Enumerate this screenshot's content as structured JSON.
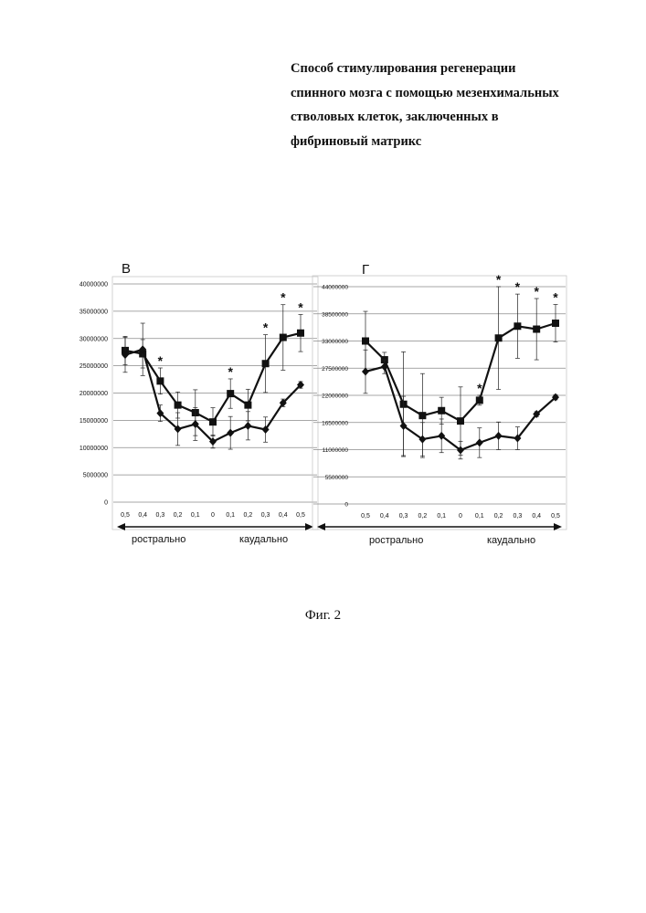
{
  "page": {
    "title_lines": [
      "Способ стимулирования регенерации",
      "спинного мозга с помощью мезенхимальных",
      "стволовых клеток, заключенных в",
      "фибриновый матрикс"
    ],
    "caption": "Фиг. 2"
  },
  "chart_data": [
    {
      "type": "line",
      "panel_label": "В",
      "categories": [
        "0,5",
        "0,4",
        "0,3",
        "0,2",
        "0,1",
        "0",
        "0,1",
        "0,2",
        "0,3",
        "0,4",
        "0,5"
      ],
      "yticks": [
        0,
        5000000,
        10000000,
        15000000,
        20000000,
        25000000,
        30000000,
        35000000,
        40000000
      ],
      "ytick_labels": [
        "0",
        "5000000",
        "10000000",
        "15000000",
        "20000000",
        "25000000",
        "30000000",
        "35000000",
        "40000000"
      ],
      "ylim": [
        0,
        40000000
      ],
      "grid": true,
      "series": [
        {
          "marker": "square",
          "values": [
            27800000,
            27200000,
            22200000,
            17800000,
            16400000,
            14700000,
            19900000,
            17800000,
            25400000,
            30200000,
            31000000
          ],
          "err": [
            2600000,
            2600000,
            2400000,
            2400000,
            4200000,
            2600000,
            2700000,
            2900000,
            5300000,
            6000000,
            3400000
          ]
        },
        {
          "marker": "diamond",
          "values": [
            27000000,
            28000000,
            16300000,
            13400000,
            14300000,
            11100000,
            12700000,
            14000000,
            13300000,
            18200000,
            21500000
          ],
          "err": [
            3200000,
            4800000,
            1500000,
            3000000,
            3000000,
            1200000,
            3000000,
            2600000,
            2300000,
            700000,
            600000
          ]
        }
      ],
      "significance_label": "*",
      "significant_indices": [
        2,
        6,
        8,
        9,
        10
      ],
      "direction_labels": [
        "рострально",
        "каудально"
      ]
    },
    {
      "type": "line",
      "panel_label": "Г",
      "categories": [
        "0,5",
        "0,4",
        "0,3",
        "0,2",
        "0,1",
        "0",
        "0,1",
        "0,2",
        "0,3",
        "0,4",
        "0,5"
      ],
      "yticks": [
        0,
        5500000,
        11000000,
        16500000,
        22000000,
        27500000,
        33000000,
        38500000,
        44000000
      ],
      "ytick_labels": [
        "0",
        "5500000",
        "11000000",
        "16500000",
        "22000000",
        "27500000",
        "33000000",
        "38500000",
        "44000000"
      ],
      "ylim": [
        0,
        44000000
      ],
      "grid": true,
      "series": [
        {
          "marker": "square",
          "values": [
            33000000,
            29200000,
            20200000,
            17900000,
            18900000,
            16800000,
            21000000,
            33600000,
            36000000,
            35400000,
            36600000
          ],
          "err": [
            6000000,
            1500000,
            10600000,
            8500000,
            2700000,
            6900000,
            1000000,
            10400000,
            6500000,
            6200000,
            3800000
          ]
        },
        {
          "marker": "diamond",
          "values": [
            26800000,
            27800000,
            15800000,
            13100000,
            13800000,
            10900000,
            12400000,
            13800000,
            13300000,
            18200000,
            21600000
          ],
          "err": [
            4400000,
            1400000,
            6000000,
            3400000,
            3400000,
            1800000,
            3000000,
            2800000,
            2300000,
            500000,
            500000
          ]
        }
      ],
      "significance_label": "*",
      "significant_indices": [
        6,
        7,
        8,
        9,
        10
      ],
      "direction_labels": [
        "рострально",
        "каудально"
      ]
    }
  ]
}
